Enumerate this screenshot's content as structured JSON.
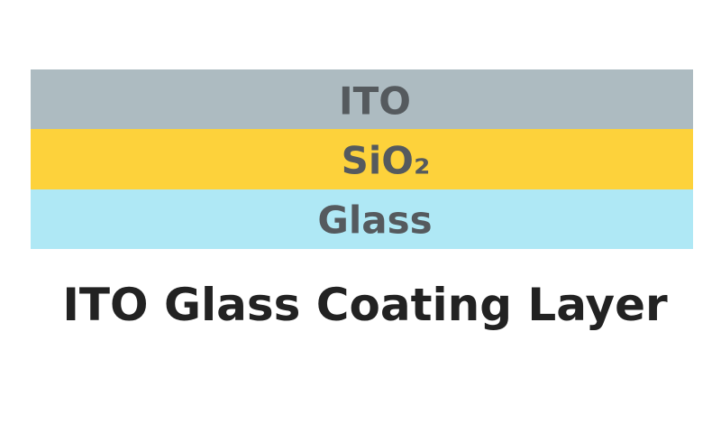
{
  "layers": [
    {
      "label": "ITO"
    },
    {
      "label": "SiO₂"
    },
    {
      "label": "Glass"
    }
  ],
  "caption": "ITO Glass Coating Layer"
}
